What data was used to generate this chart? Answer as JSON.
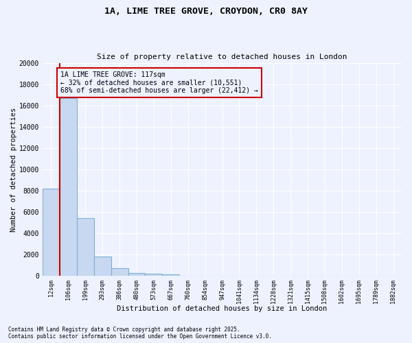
{
  "title_line1": "1A, LIME TREE GROVE, CROYDON, CR0 8AY",
  "title_line2": "Size of property relative to detached houses in London",
  "xlabel": "Distribution of detached houses by size in London",
  "ylabel": "Number of detached properties",
  "categories": [
    "12sqm",
    "106sqm",
    "199sqm",
    "293sqm",
    "386sqm",
    "480sqm",
    "573sqm",
    "667sqm",
    "760sqm",
    "854sqm",
    "947sqm",
    "1041sqm",
    "1134sqm",
    "1228sqm",
    "1321sqm",
    "1415sqm",
    "1508sqm",
    "1602sqm",
    "1695sqm",
    "1789sqm",
    "1882sqm"
  ],
  "values": [
    8200,
    16700,
    5400,
    1800,
    700,
    300,
    200,
    150,
    0,
    0,
    0,
    0,
    0,
    0,
    0,
    0,
    0,
    0,
    0,
    0,
    0
  ],
  "bar_color": "#c8d8f0",
  "bar_edge_color": "#7bafd4",
  "vline_color": "#cc0000",
  "annotation_text": "1A LIME TREE GROVE: 117sqm\n← 32% of detached houses are smaller (10,551)\n68% of semi-detached houses are larger (22,412) →",
  "annotation_box_color": "#cc0000",
  "ylim": [
    0,
    20000
  ],
  "yticks": [
    0,
    2000,
    4000,
    6000,
    8000,
    10000,
    12000,
    14000,
    16000,
    18000,
    20000
  ],
  "footnote_line1": "Contains HM Land Registry data © Crown copyright and database right 2025.",
  "footnote_line2": "Contains public sector information licensed under the Open Government Licence v3.0.",
  "bg_color": "#eef2ff",
  "grid_color": "#ffffff"
}
